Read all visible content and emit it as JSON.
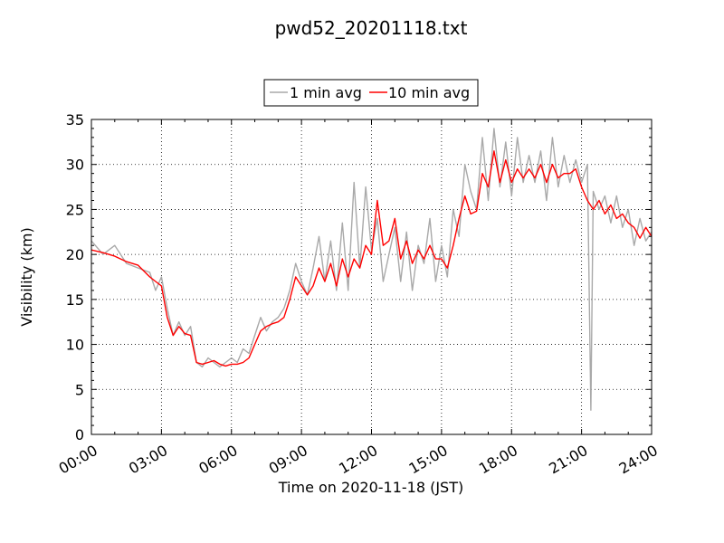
{
  "chart_data": {
    "type": "line",
    "title": "pwd52_20201118.txt",
    "xlabel": "Time on 2020-11-18 (JST)",
    "ylabel": "Visibility (km)",
    "xlim": [
      "00:00",
      "24:00"
    ],
    "ylim": [
      0,
      35
    ],
    "x_ticks": [
      "00:00",
      "03:00",
      "06:00",
      "09:00",
      "12:00",
      "15:00",
      "18:00",
      "21:00",
      "24:00"
    ],
    "y_ticks": [
      "0",
      "5",
      "10",
      "15",
      "20",
      "25",
      "30",
      "35"
    ],
    "grid": true,
    "legend_position": "top-center",
    "series": [
      {
        "name": "1 min avg",
        "color": "#a9a9a9",
        "time_h": [
          0,
          0.5,
          1.0,
          1.5,
          2.0,
          2.5,
          2.75,
          3.0,
          3.25,
          3.5,
          3.75,
          4.0,
          4.25,
          4.5,
          4.75,
          5.0,
          5.25,
          5.5,
          5.75,
          6.0,
          6.25,
          6.5,
          6.75,
          7.0,
          7.25,
          7.5,
          7.75,
          8.0,
          8.25,
          8.5,
          8.75,
          9.0,
          9.25,
          9.5,
          9.75,
          10.0,
          10.25,
          10.5,
          10.75,
          11.0,
          11.25,
          11.5,
          11.75,
          12.0,
          12.25,
          12.5,
          12.75,
          13.0,
          13.25,
          13.5,
          13.75,
          14.0,
          14.25,
          14.5,
          14.75,
          15.0,
          15.25,
          15.5,
          15.75,
          16.0,
          16.25,
          16.5,
          16.75,
          17.0,
          17.25,
          17.5,
          17.75,
          18.0,
          18.25,
          18.5,
          18.75,
          19.0,
          19.25,
          19.5,
          19.75,
          20.0,
          20.25,
          20.5,
          20.75,
          21.0,
          21.25,
          21.4,
          21.5,
          21.75,
          22.0,
          22.25,
          22.5,
          22.75,
          23.0,
          23.25,
          23.5,
          23.75,
          24.0
        ],
        "visibility_km": [
          21.5,
          20.0,
          21.0,
          19.0,
          18.5,
          18.0,
          16.0,
          17.5,
          14.0,
          11.0,
          12.5,
          11.0,
          12.0,
          8.0,
          7.5,
          8.5,
          8.0,
          7.5,
          8.0,
          8.5,
          8.0,
          9.5,
          9.0,
          11.0,
          13.0,
          11.5,
          12.5,
          13.0,
          14.0,
          16.0,
          19.0,
          17.0,
          15.5,
          18.5,
          22.0,
          17.0,
          21.5,
          16.0,
          23.5,
          16.0,
          28.0,
          18.5,
          27.5,
          20.5,
          24.0,
          17.0,
          20.0,
          23.0,
          17.0,
          22.5,
          16.0,
          21.0,
          19.0,
          24.0,
          17.0,
          21.0,
          17.5,
          25.0,
          22.0,
          30.0,
          27.0,
          25.0,
          33.0,
          26.0,
          34.0,
          27.5,
          32.5,
          26.5,
          33.0,
          28.0,
          31.0,
          28.0,
          31.5,
          26.0,
          33.0,
          27.5,
          31.0,
          28.0,
          30.5,
          28.0,
          30.0,
          2.7,
          27.0,
          25.0,
          26.5,
          23.5,
          26.5,
          23.0,
          25.0,
          21.0,
          24.0,
          21.5,
          22.5
        ]
      },
      {
        "name": "10 min avg",
        "color": "#ff0000",
        "time_h": [
          0,
          0.5,
          1.0,
          1.5,
          2.0,
          2.5,
          2.75,
          3.0,
          3.25,
          3.5,
          3.75,
          4.0,
          4.25,
          4.5,
          4.75,
          5.0,
          5.25,
          5.5,
          5.75,
          6.0,
          6.25,
          6.5,
          6.75,
          7.0,
          7.25,
          7.5,
          7.75,
          8.0,
          8.25,
          8.5,
          8.75,
          9.0,
          9.25,
          9.5,
          9.75,
          10.0,
          10.25,
          10.5,
          10.75,
          11.0,
          11.25,
          11.5,
          11.75,
          12.0,
          12.25,
          12.5,
          12.75,
          13.0,
          13.25,
          13.5,
          13.75,
          14.0,
          14.25,
          14.5,
          14.75,
          15.0,
          15.25,
          15.5,
          15.75,
          16.0,
          16.25,
          16.5,
          16.75,
          17.0,
          17.25,
          17.5,
          17.75,
          18.0,
          18.25,
          18.5,
          18.75,
          19.0,
          19.25,
          19.5,
          19.75,
          20.0,
          20.25,
          20.5,
          20.75,
          21.0,
          21.25,
          21.5,
          21.75,
          22.0,
          22.25,
          22.5,
          22.75,
          23.0,
          23.25,
          23.5,
          23.75,
          24.0
        ],
        "visibility_km": [
          20.5,
          20.2,
          19.8,
          19.2,
          18.8,
          17.5,
          17.0,
          16.5,
          13.0,
          11.0,
          12.0,
          11.2,
          11.0,
          8.0,
          7.8,
          8.0,
          8.2,
          7.8,
          7.6,
          7.8,
          7.8,
          8.0,
          8.5,
          10.0,
          11.5,
          12.0,
          12.3,
          12.5,
          13.0,
          15.0,
          17.5,
          16.5,
          15.5,
          16.5,
          18.5,
          17.0,
          19.0,
          16.5,
          19.5,
          17.5,
          19.5,
          18.5,
          21.0,
          20.0,
          26.0,
          21.0,
          21.5,
          24.0,
          19.5,
          21.5,
          19.0,
          20.5,
          19.5,
          21.0,
          19.5,
          19.5,
          18.5,
          21.0,
          24.0,
          26.5,
          24.5,
          24.8,
          29.0,
          27.5,
          31.5,
          28.0,
          30.5,
          28.0,
          29.5,
          28.5,
          29.5,
          28.5,
          30.0,
          28.0,
          30.0,
          28.5,
          29.0,
          29.0,
          29.5,
          27.5,
          26.0,
          25.0,
          26.0,
          24.5,
          25.5,
          24.0,
          24.5,
          23.5,
          23.0,
          21.8,
          23.0,
          22.0
        ]
      }
    ]
  }
}
